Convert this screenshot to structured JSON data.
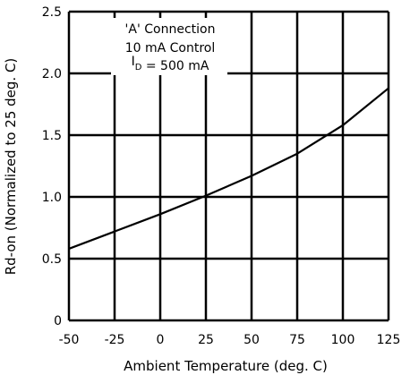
{
  "chart_data": {
    "type": "line",
    "xlabel": "Ambient Temperature (deg. C)",
    "ylabel": "Rd-on (Normalized to 25 deg. C)",
    "xlim": [
      -50,
      125
    ],
    "ylim": [
      0,
      2.5
    ],
    "x_ticks": [
      -50,
      -25,
      0,
      25,
      50,
      75,
      100,
      125
    ],
    "y_ticks": [
      0,
      0.5,
      1.0,
      1.5,
      2.0,
      2.5
    ],
    "x_tick_labels": [
      "-50",
      "-25",
      "0",
      "25",
      "50",
      "75",
      "100",
      "125"
    ],
    "y_tick_labels": [
      "0",
      "0.5",
      "1.0",
      "1.5",
      "2.0",
      "2.5"
    ],
    "grid": true,
    "annotations": {
      "line1": "'A' Connection",
      "line2": "10 mA Control",
      "line3_prefix": "I",
      "line3_sub": "D",
      "line3_rest": " = 500 mA"
    },
    "series": [
      {
        "x": [
          -50,
          -25,
          0,
          25,
          50,
          75,
          100,
          125
        ],
        "values": [
          0.58,
          0.72,
          0.86,
          1.01,
          1.17,
          1.35,
          1.58,
          1.88
        ]
      }
    ],
    "colors": {
      "line": "#000000",
      "grid": "#000000"
    }
  }
}
